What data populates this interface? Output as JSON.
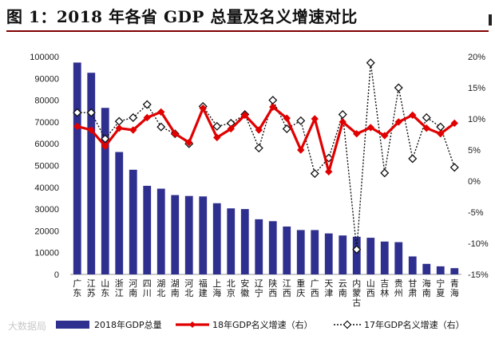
{
  "page": {
    "title": "图 1：2018 年各省 GDP 总量及名义增速对比",
    "watermark": "大数据局"
  },
  "chart_data": {
    "type": "bar",
    "title": "2018 年各省 GDP 总量及名义增速对比",
    "categories": [
      "广东",
      "江苏",
      "山东",
      "浙江",
      "河南",
      "四川",
      "湖北",
      "湖南",
      "河北",
      "福建",
      "上海",
      "北京",
      "安徽",
      "辽宁",
      "陕西",
      "江西",
      "重庆",
      "广西",
      "天津",
      "云南",
      "内蒙古",
      "山西",
      "吉林",
      "贵州",
      "甘肃",
      "海南",
      "宁夏",
      "青海"
    ],
    "y_left": {
      "min": 0,
      "max": 100000,
      "step": 10000
    },
    "y_right": {
      "min": -15,
      "max": 20,
      "step": 5,
      "unit": "%"
    },
    "series": [
      {
        "name": "2018年GDP总量",
        "axis": "left",
        "type": "bar",
        "color": "#2f2f8f",
        "values": [
          97278,
          92595,
          76470,
          56197,
          48056,
          40678,
          39367,
          36426,
          36010,
          35804,
          32680,
          30320,
          30007,
          25315,
          24438,
          21985,
          20363,
          20353,
          18810,
          17881,
          17289,
          16818,
          15075,
          14806,
          8246,
          4832,
          3705,
          2865
        ]
      },
      {
        "name": "18年GDP名义增速（右）",
        "axis": "right",
        "type": "line",
        "color": "#e00000",
        "values": [
          8.8,
          8.2,
          5.6,
          8.5,
          8.2,
          10.2,
          11.1,
          7.6,
          6.2,
          11.7,
          7.0,
          8.4,
          10.6,
          8.2,
          11.9,
          10.1,
          5.0,
          10.0,
          1.5,
          9.5,
          7.6,
          8.6,
          7.3,
          9.5,
          10.6,
          8.5,
          7.6,
          9.3
        ]
      },
      {
        "name": "17年GDP名义增速（右）",
        "axis": "right",
        "type": "line",
        "color": "#111111",
        "dashed": true,
        "values": [
          11.0,
          11.0,
          6.8,
          9.6,
          10.2,
          12.3,
          8.7,
          7.6,
          6.0,
          12.0,
          8.8,
          9.3,
          10.7,
          5.3,
          13.0,
          8.4,
          9.7,
          1.2,
          3.7,
          10.7,
          -11.0,
          19.0,
          1.3,
          15.0,
          3.6,
          10.2,
          8.7,
          2.2
        ]
      }
    ],
    "y_left_ticks": [
      "0",
      "10000",
      "20000",
      "30000",
      "40000",
      "50000",
      "60000",
      "70000",
      "80000",
      "90000",
      "100000"
    ],
    "y_right_ticks": [
      "-15%",
      "-10%",
      "-5%",
      "0%",
      "5%",
      "10%",
      "15%",
      "20%"
    ],
    "legend": {
      "position": "bottom",
      "items": [
        "2018年GDP总量",
        "18年GDP名义增速（右）",
        "17年GDP名义增速（右）"
      ]
    }
  }
}
